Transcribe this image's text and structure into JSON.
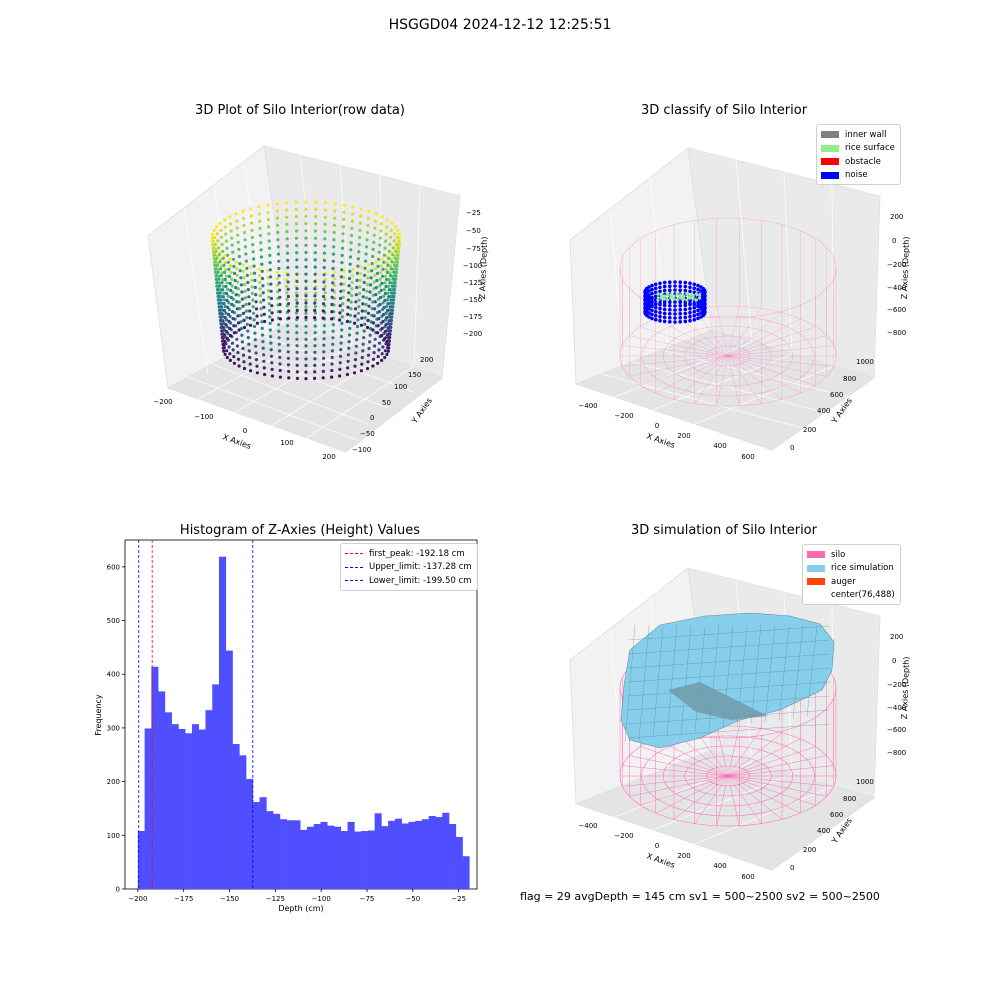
{
  "figure": {
    "suptitle": "HSGGD04 2024-12-12 12:25:51",
    "status": "flag = 29  avgDepth = 145 cm  sv1 = 500~2500  sv2 = 500~2500"
  },
  "colors": {
    "inner_wall": "#808080",
    "rice_surface": "#90ee90",
    "obstacle": "#ff0000",
    "noise": "#0000ff",
    "silo": "#ff69b4",
    "rice_simulation": "#87ceeb",
    "auger": "#ff4500",
    "hist_bar": "#4f4fff"
  },
  "chart_data": [
    {
      "type": "scatter",
      "title": "3D Plot of Silo Interior(row data)",
      "xlabel": "X Axies",
      "ylabel": "Y Axies",
      "zlabel": "Z Axies (Depth)",
      "x_ticks": [
        -200,
        -100,
        0,
        100,
        200
      ],
      "y_ticks": [
        -100,
        -50,
        0,
        50,
        100,
        150,
        200
      ],
      "z_ticks": [
        -25,
        -50,
        -75,
        -100,
        -125,
        -150,
        -175,
        -200
      ],
      "colormap": "viridis"
    },
    {
      "type": "scatter",
      "title": "3D classify of Silo Interior",
      "xlabel": "X Axies",
      "ylabel": "Y Axies",
      "zlabel": "Z Axies (Depth)",
      "x_ticks": [
        -400,
        -200,
        0,
        200,
        400,
        600
      ],
      "y_ticks": [
        0,
        200,
        400,
        600,
        800,
        1000
      ],
      "z_ticks": [
        200,
        0,
        -200,
        -400,
        -600,
        -800
      ],
      "legend": [
        "inner wall",
        "rice surface",
        "obstacle",
        "noise"
      ],
      "legend_placement": "top-right"
    },
    {
      "type": "bar",
      "title": "Histogram of Z-Axies (Height) Values",
      "xlabel": "Depth (cm)",
      "ylabel": "Frequency",
      "xlim": [
        -207,
        -15
      ],
      "ylim": [
        0,
        650
      ],
      "x_ticks": [
        -200,
        -175,
        -150,
        -125,
        -100,
        -75,
        -50,
        -25
      ],
      "y_ticks": [
        0,
        100,
        200,
        300,
        400,
        500,
        600
      ],
      "bin_start": -200,
      "bin_width": 3.69,
      "values": [
        108,
        299,
        414,
        368,
        329,
        307,
        298,
        290,
        307,
        297,
        333,
        381,
        619,
        444,
        270,
        249,
        205,
        162,
        171,
        145,
        140,
        130,
        128,
        128,
        110,
        116,
        121,
        125,
        118,
        116,
        108,
        125,
        107,
        108,
        109,
        141,
        117,
        127,
        131,
        122,
        125,
        127,
        130,
        136,
        134,
        142,
        121,
        97,
        61
      ],
      "vlines": [
        {
          "label": "first_peak: -192.18 cm",
          "x": -192.18,
          "color": "#ff0000"
        },
        {
          "label": "Upper_limit: -137.28 cm",
          "x": -137.28,
          "color": "#0000ff"
        },
        {
          "label": "Lower_limit: -199.50 cm",
          "x": -199.5,
          "color": "#0000ff"
        }
      ],
      "legend_placement": "top-right"
    },
    {
      "type": "area",
      "title": "3D simulation of Silo Interior",
      "xlabel": "X Axies",
      "ylabel": "Y Axies",
      "zlabel": "Z Axies (Depth)",
      "x_ticks": [
        -400,
        -200,
        0,
        200,
        400,
        600
      ],
      "y_ticks": [
        0,
        200,
        400,
        600,
        800,
        1000
      ],
      "z_ticks": [
        200,
        0,
        -200,
        -400,
        -600,
        -800
      ],
      "legend": [
        "silo",
        "rice simulation",
        "auger",
        "center(76,488)"
      ],
      "legend_placement": "top-right"
    }
  ]
}
